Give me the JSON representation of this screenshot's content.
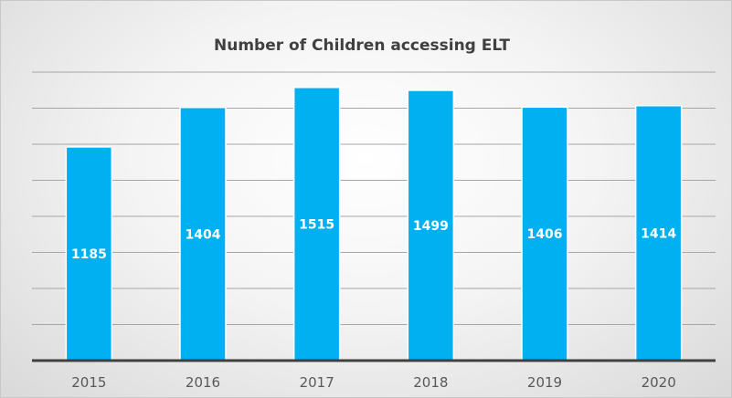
{
  "chart_data": {
    "type": "bar",
    "title": "Number of Children accessing ELT",
    "xlabel": "",
    "ylabel": "",
    "categories": [
      "2015",
      "2016",
      "2017",
      "2018",
      "2019",
      "2020"
    ],
    "values": [
      1185,
      1404,
      1515,
      1499,
      1406,
      1414
    ],
    "data_labels": [
      "1185",
      "1404",
      "1515",
      "1499",
      "1406",
      "1414"
    ],
    "ylim": [
      0,
      1600
    ],
    "y_major_step": 200,
    "grid": true,
    "legend": "none",
    "bar_color": "#00b0f0",
    "bar_border_color": "#ffffff",
    "gridline_color": "#a6a6a6",
    "axis_color": "#404040"
  }
}
